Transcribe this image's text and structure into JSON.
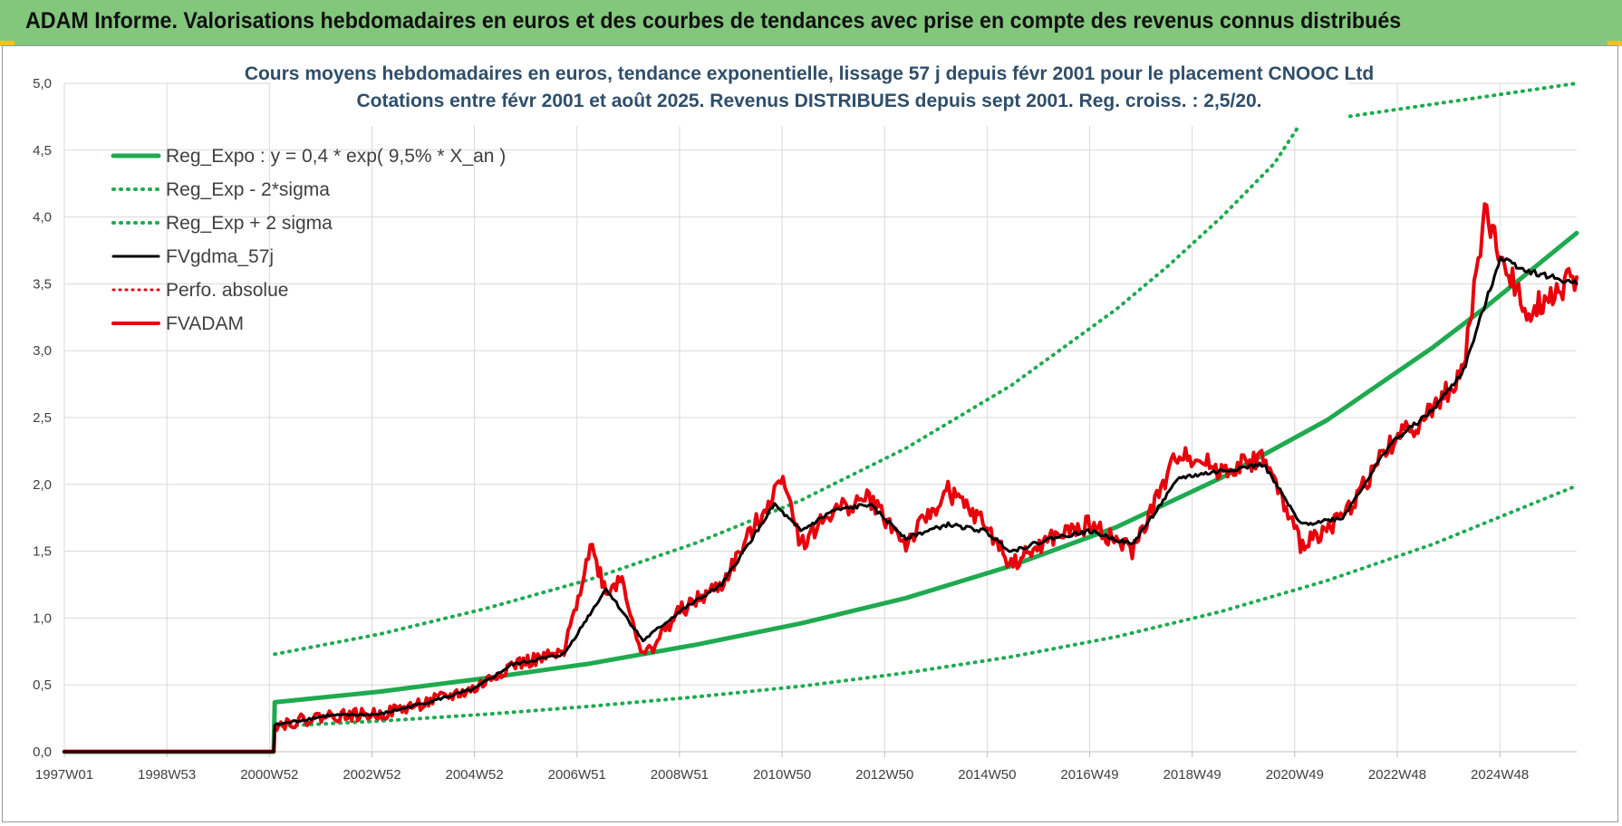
{
  "header": {
    "title": "ADAM Informe. Valorisations hebdomadaires en euros et des courbes de tendances avec prise en compte des revenus connus distribués"
  },
  "colors": {
    "header_bg": "#82c77c",
    "trend_green": "#1faa50",
    "smoothed_black": "#000000",
    "adam_red": "#e8000b"
  },
  "chart_data": {
    "type": "line",
    "title": "Cours moyens hebdomadaires en euros, tendance exponentielle, lissage 57 j depuis févr 2001 pour le placement CNOOC Ltd",
    "subtitle": "Cotations entre févr 2001 et août 2025. Revenus DISTRIBUES depuis sept 2001. Reg. croiss. : 2,5/20.",
    "xlabel": "",
    "ylabel": "",
    "grid": true,
    "legend_position": "top-left",
    "x_tick_labels": [
      "1997W01",
      "1998W53",
      "2000W52",
      "2002W52",
      "2004W52",
      "2006W51",
      "2008W51",
      "2010W50",
      "2012W50",
      "2014W50",
      "2016W49",
      "2018W49",
      "2020W49",
      "2022W48",
      "2024W48"
    ],
    "x_range": [
      1997.0,
      2025.75
    ],
    "y_tick_labels": [
      "0,0",
      "0,5",
      "1,0",
      "1,5",
      "2,0",
      "2,5",
      "3,0",
      "3,5",
      "4,0",
      "4,5",
      "5,0"
    ],
    "ylim": [
      0,
      5
    ],
    "series": [
      {
        "name": "Reg_Expo : y = 0,4 * exp( 9,5% *  X_an )",
        "style": "solid-green",
        "x": [
          1997.0,
          2000.98,
          2001.0,
          2003.0,
          2005.0,
          2007.0,
          2009.0,
          2011.0,
          2013.0,
          2015.0,
          2017.0,
          2019.0,
          2021.0,
          2023.0,
          2024.0,
          2025.75
        ],
        "y": [
          0.0,
          0.0,
          0.37,
          0.45,
          0.55,
          0.66,
          0.8,
          0.96,
          1.15,
          1.39,
          1.68,
          2.05,
          2.48,
          3.02,
          3.32,
          3.88
        ]
      },
      {
        "name": "Reg_Exp - 2*sigma",
        "style": "dotted-green",
        "x": [
          2001.0,
          2003.0,
          2005.0,
          2007.0,
          2009.0,
          2011.0,
          2013.0,
          2015.0,
          2017.0,
          2019.0,
          2021.0,
          2023.0,
          2025.75
        ],
        "y": [
          0.19,
          0.23,
          0.28,
          0.34,
          0.41,
          0.49,
          0.59,
          0.71,
          0.86,
          1.05,
          1.28,
          1.55,
          1.99
        ]
      },
      {
        "name": "Reg_Exp + 2 sigma",
        "style": "dotted-green",
        "x": [
          2001.0,
          2003.0,
          2005.0,
          2007.0,
          2009.0,
          2011.0,
          2013.0,
          2015.0,
          2017.0,
          2018.0,
          2019.0,
          2020.0,
          2020.5,
          2025.75
        ],
        "y": [
          0.73,
          0.88,
          1.07,
          1.29,
          1.56,
          1.88,
          2.27,
          2.74,
          3.31,
          3.64,
          4.0,
          4.4,
          4.7,
          5.0
        ]
      },
      {
        "name": "FVgdma_57j",
        "style": "solid-black",
        "x": [
          1997.0,
          2000.98,
          2001.0,
          2002.0,
          2003.0,
          2004.0,
          2004.8,
          2005.5,
          2006.5,
          2007.3,
          2008.0,
          2008.7,
          2009.5,
          2010.5,
          2011.0,
          2011.6,
          2012.3,
          2013.0,
          2013.8,
          2014.5,
          2015.0,
          2015.8,
          2016.5,
          2017.3,
          2018.2,
          2019.0,
          2019.8,
          2020.5,
          2021.3,
          2022.2,
          2023.0,
          2023.6,
          2024.3,
          2024.8,
          2025.75
        ],
        "y": [
          0.0,
          0.0,
          0.2,
          0.27,
          0.28,
          0.38,
          0.47,
          0.65,
          0.73,
          1.22,
          0.83,
          1.05,
          1.25,
          1.85,
          1.65,
          1.8,
          1.85,
          1.6,
          1.7,
          1.65,
          1.5,
          1.6,
          1.65,
          1.55,
          2.05,
          2.1,
          2.15,
          1.7,
          1.75,
          2.3,
          2.55,
          2.85,
          3.7,
          3.6,
          3.5
        ]
      },
      {
        "name": "Perfo. absolue",
        "style": "dotted-red",
        "x": [],
        "y": []
      },
      {
        "name": "FVADAM",
        "style": "solid-red",
        "x": [
          1997.0,
          2000.98,
          2001.0,
          2002.0,
          2003.0,
          2004.0,
          2004.8,
          2005.5,
          2006.5,
          2007.0,
          2007.3,
          2007.6,
          2008.0,
          2008.7,
          2009.5,
          2010.5,
          2010.7,
          2011.0,
          2011.6,
          2012.3,
          2013.0,
          2013.8,
          2014.5,
          2015.0,
          2015.8,
          2016.5,
          2017.3,
          2018.2,
          2019.0,
          2019.8,
          2020.5,
          2021.3,
          2022.2,
          2023.0,
          2023.6,
          2024.0,
          2024.3,
          2024.8,
          2025.75
        ],
        "y": [
          0.0,
          0.0,
          0.2,
          0.27,
          0.28,
          0.38,
          0.47,
          0.65,
          0.73,
          1.55,
          1.2,
          1.3,
          0.7,
          1.05,
          1.25,
          1.95,
          2.05,
          1.55,
          1.8,
          1.9,
          1.55,
          1.95,
          1.7,
          1.4,
          1.6,
          1.7,
          1.5,
          2.25,
          2.1,
          2.2,
          1.55,
          1.75,
          2.3,
          2.55,
          2.85,
          4.05,
          3.7,
          3.3,
          3.55
        ]
      }
    ]
  }
}
